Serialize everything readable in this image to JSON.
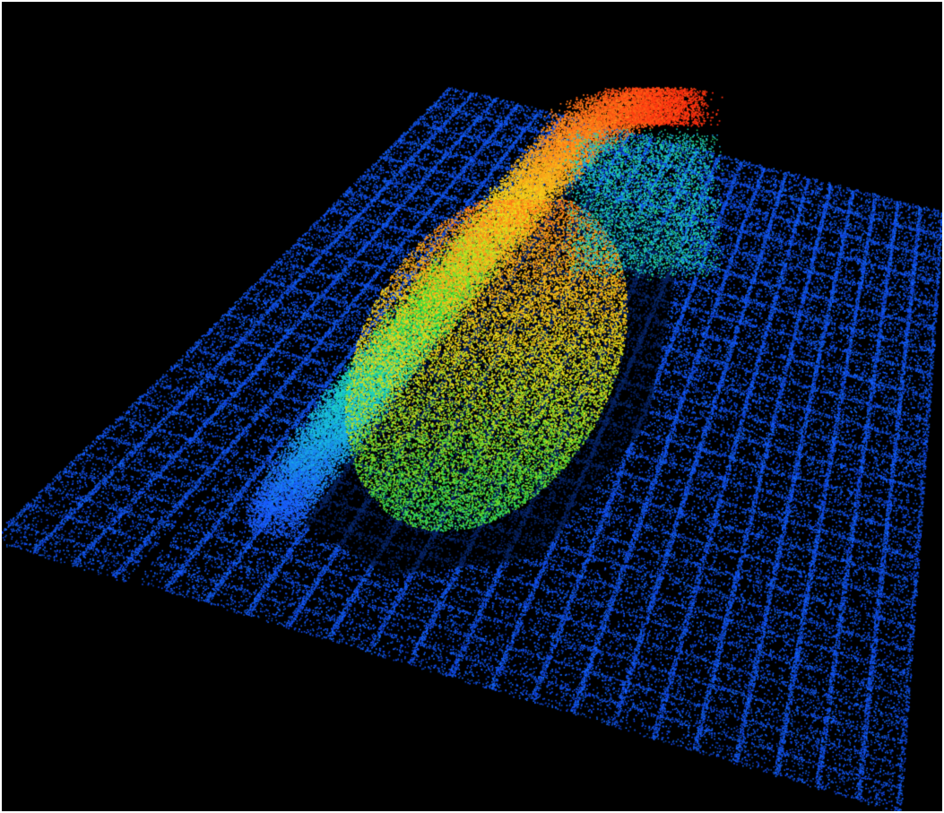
{
  "scene": {
    "kind": "3D point cloud",
    "background": "#000000",
    "colormap": [
      "#1030c8",
      "#1a5cff",
      "#19d0d8",
      "#3adf3a",
      "#f2e21a",
      "#ff8c1a",
      "#ff2a10"
    ],
    "ground_color": "#1a55f0"
  }
}
